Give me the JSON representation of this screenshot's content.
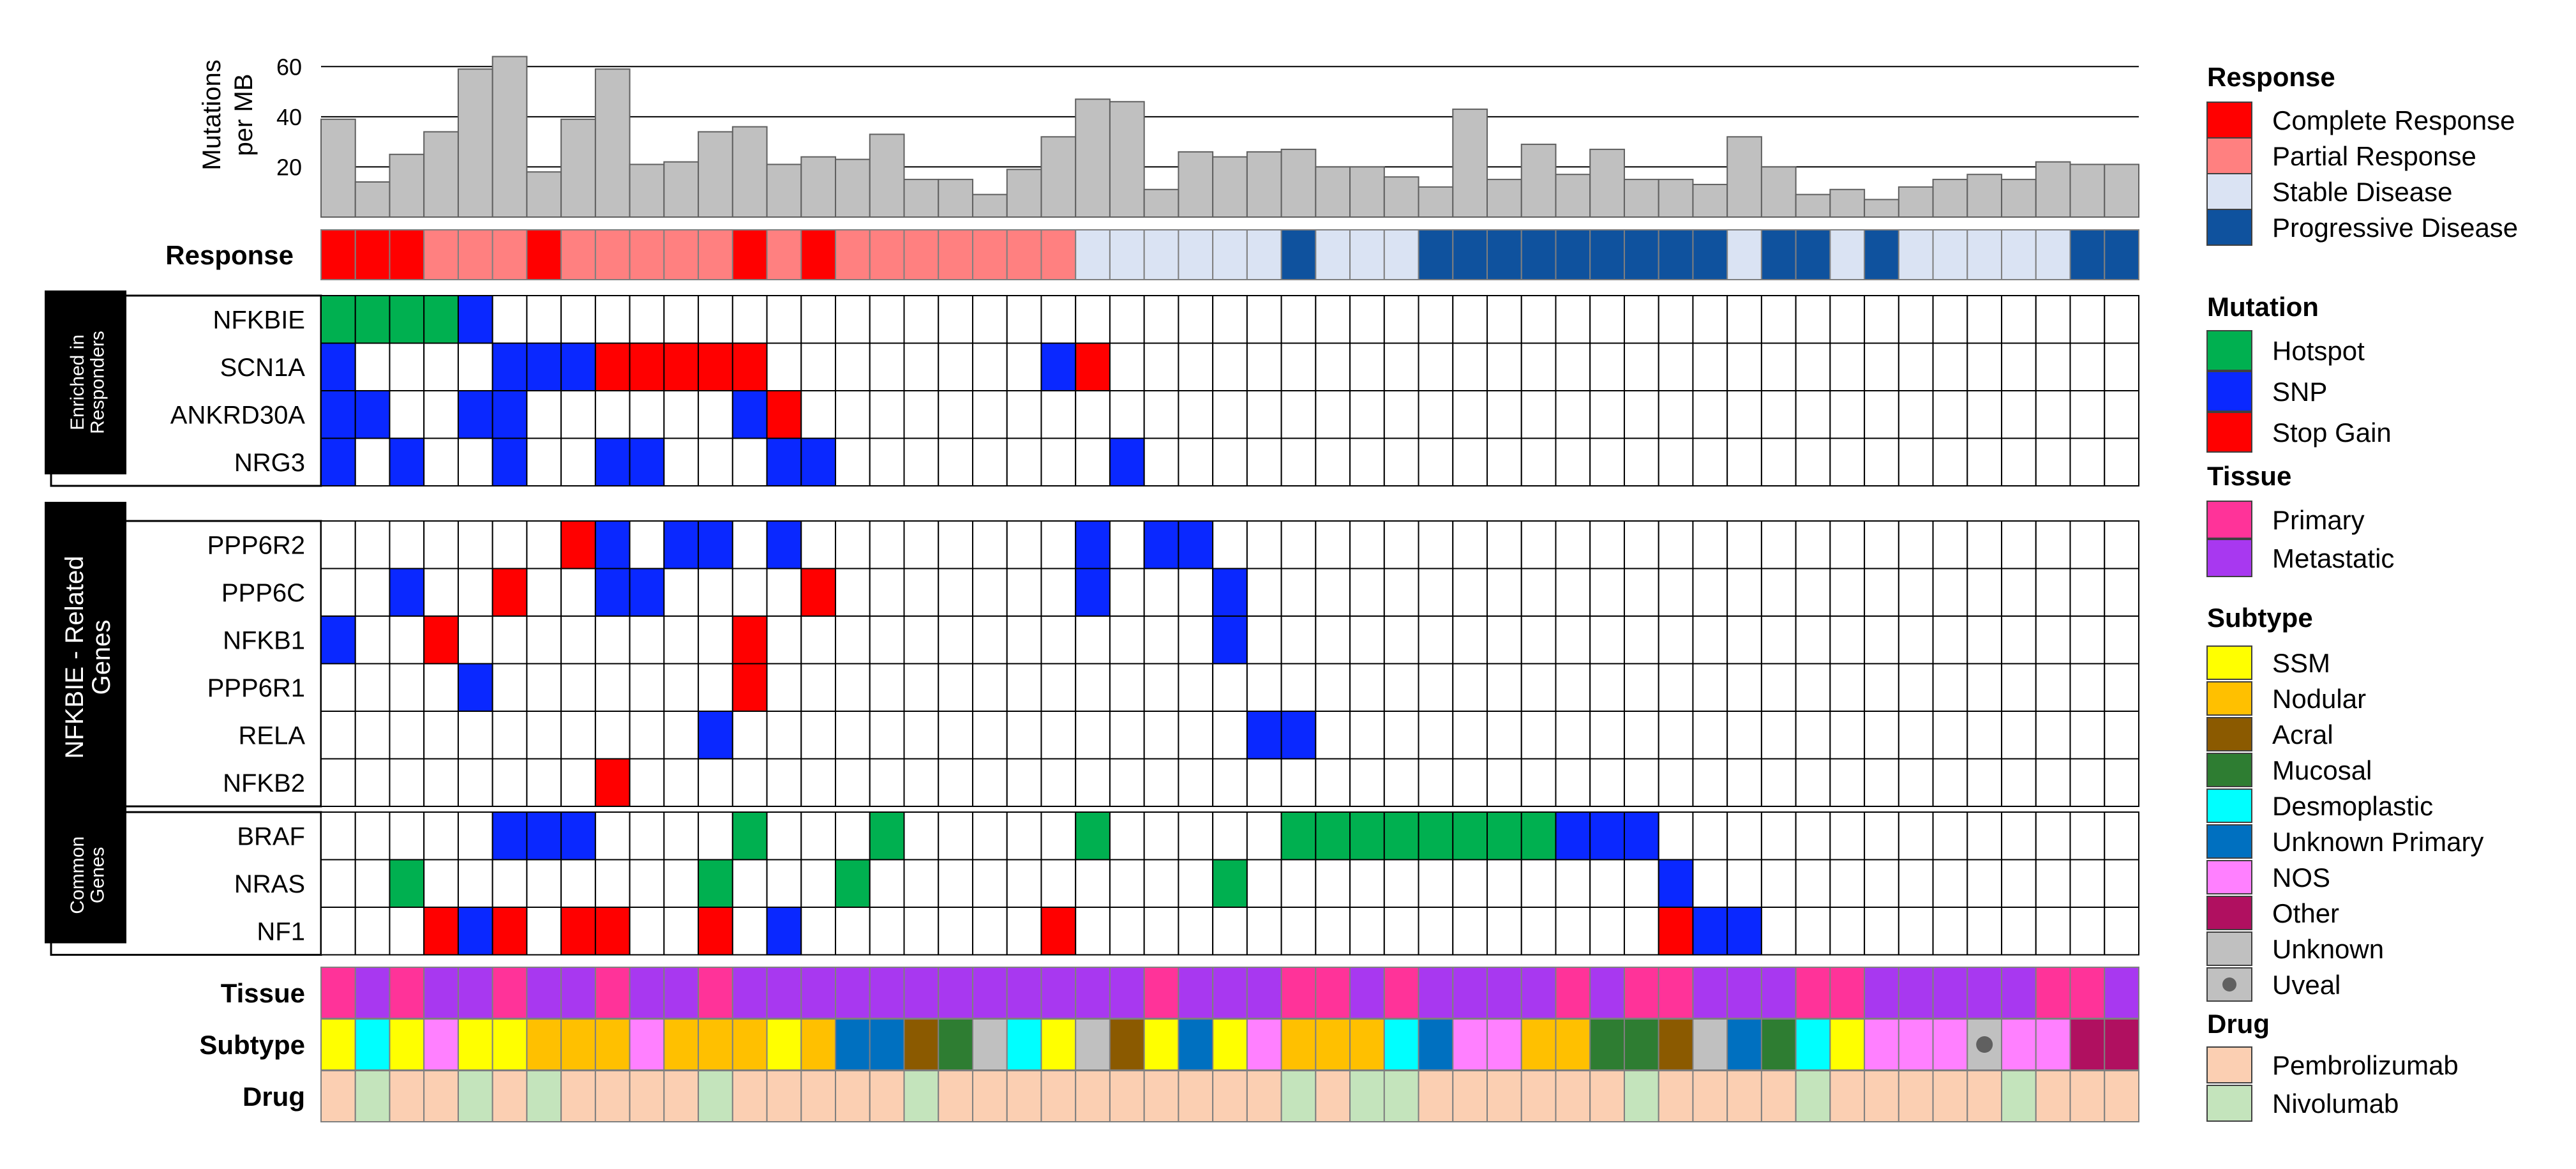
{
  "chart_data": {
    "type": "heatmap",
    "n_patients": 53,
    "tmb": {
      "ylabel_line1": "Mutations",
      "ylabel_line2": "per MB",
      "ticks": [
        "20",
        "40",
        "60"
      ],
      "tick_values": [
        20,
        40,
        60
      ],
      "ylim": [
        0,
        70
      ],
      "grid": true,
      "values": [
        39,
        14,
        25,
        34,
        59,
        64,
        18,
        39,
        59,
        21,
        22,
        34,
        36,
        21,
        24,
        23,
        33,
        15,
        15,
        9,
        19,
        32,
        47,
        46,
        11,
        26,
        24,
        26,
        27,
        20,
        20,
        16,
        12,
        43,
        15,
        29,
        17,
        27,
        15,
        15,
        13,
        32,
        20,
        9,
        11,
        7,
        12,
        15,
        17,
        15,
        22,
        21,
        21
      ]
    },
    "response": {
      "label": "Response",
      "values": [
        "CR",
        "CR",
        "CR",
        "PR",
        "PR",
        "PR",
        "CR",
        "PR",
        "PR",
        "PR",
        "PR",
        "PR",
        "CR",
        "PR",
        "CR",
        "PR",
        "PR",
        "PR",
        "PR",
        "PR",
        "PR",
        "PR",
        "SD",
        "SD",
        "SD",
        "SD",
        "SD",
        "SD",
        "PD",
        "SD",
        "SD",
        "SD",
        "PD",
        "PD",
        "PD",
        "PD",
        "PD",
        "PD",
        "PD",
        "PD",
        "PD",
        "SD",
        "PD",
        "PD",
        "SD",
        "PD",
        "SD",
        "SD",
        "SD",
        "SD",
        "SD",
        "PD",
        "PD"
      ]
    },
    "gene_groups": [
      {
        "label_line1": "Enriched in",
        "label_line2": "Responders",
        "genes": [
          {
            "name": "NFKBIE",
            "mutations": {
              "0": "H",
              "1": "H",
              "2": "H",
              "3": "H",
              "4": "S"
            }
          },
          {
            "name": "SCN1A",
            "mutations": {
              "0": "S",
              "5": "S",
              "6": "S",
              "7": "S",
              "8": "G",
              "9": "G",
              "10": "G",
              "11": "G",
              "12": "G",
              "21": "S",
              "22": "G"
            }
          },
          {
            "name": "ANKRD30A",
            "mutations": {
              "0": "S",
              "1": "S",
              "4": "S",
              "5": "S",
              "12": "S",
              "13": "G"
            }
          },
          {
            "name": "NRG3",
            "mutations": {
              "0": "S",
              "2": "S",
              "5": "S",
              "8": "S",
              "9": "S",
              "13": "S",
              "14": "S",
              "23": "S"
            }
          }
        ]
      },
      {
        "label_line1": "NFKBIE - Related",
        "label_line2": "Genes",
        "genes": [
          {
            "name": "PPP6R2",
            "mutations": {
              "7": "G",
              "8": "S",
              "10": "S",
              "11": "S",
              "13": "S",
              "22": "S",
              "24": "S",
              "25": "S"
            }
          },
          {
            "name": "PPP6C",
            "mutations": {
              "2": "S",
              "5": "G",
              "8": "S",
              "9": "S",
              "14": "G",
              "22": "S",
              "26": "S"
            }
          },
          {
            "name": "NFKB1",
            "mutations": {
              "0": "S",
              "3": "G",
              "12": "G",
              "26": "S"
            }
          },
          {
            "name": "PPP6R1",
            "mutations": {
              "4": "S",
              "12": "G"
            }
          },
          {
            "name": "RELA",
            "mutations": {
              "11": "S",
              "27": "S",
              "28": "S"
            }
          },
          {
            "name": "NFKB2",
            "mutations": {
              "8": "G"
            }
          }
        ]
      },
      {
        "label_line1": "Common",
        "label_line2": "Genes",
        "genes": [
          {
            "name": "BRAF",
            "mutations": {
              "5": "S",
              "6": "S",
              "7": "S",
              "12": "H",
              "16": "H",
              "22": "H",
              "28": "H",
              "29": "H",
              "30": "H",
              "31": "H",
              "32": "H",
              "33": "H",
              "34": "H",
              "35": "H",
              "36": "S",
              "37": "S",
              "38": "S"
            }
          },
          {
            "name": "NRAS",
            "mutations": {
              "2": "H",
              "11": "H",
              "15": "H",
              "26": "H",
              "39": "S"
            }
          },
          {
            "name": "NF1",
            "mutations": {
              "3": "G",
              "4": "S",
              "5": "G",
              "7": "G",
              "8": "G",
              "11": "G",
              "13": "S",
              "21": "G",
              "39": "G",
              "40": "S",
              "41": "S"
            }
          }
        ]
      }
    ],
    "tissue": {
      "label": "Tissue",
      "values": [
        "P",
        "M",
        "P",
        "M",
        "M",
        "P",
        "M",
        "M",
        "P",
        "M",
        "M",
        "P",
        "M",
        "M",
        "M",
        "M",
        "M",
        "M",
        "M",
        "M",
        "M",
        "M",
        "M",
        "M",
        "P",
        "M",
        "M",
        "M",
        "P",
        "P",
        "M",
        "P",
        "M",
        "M",
        "M",
        "M",
        "P",
        "M",
        "P",
        "P",
        "M",
        "M",
        "M",
        "P",
        "P",
        "M",
        "M",
        "M",
        "M",
        "M",
        "P",
        "P",
        "M"
      ]
    },
    "subtype": {
      "label": "Subtype",
      "values": [
        "SSM",
        "DES",
        "SSM",
        "NOS",
        "SSM",
        "SSM",
        "NOD",
        "NOD",
        "NOD",
        "NOS",
        "NOD",
        "NOD",
        "NOD",
        "SSM",
        "NOD",
        "UP",
        "UP",
        "ACR",
        "MUC",
        "UNK",
        "DES",
        "SSM",
        "UNK",
        "ACR",
        "SSM",
        "UP",
        "SSM",
        "NOS",
        "NOD",
        "NOD",
        "NOD",
        "DES",
        "UP",
        "NOS",
        "NOS",
        "NOD",
        "NOD",
        "MUC",
        "MUC",
        "ACR",
        "UNK",
        "UP",
        "MUC",
        "DES",
        "SSM",
        "NOS",
        "NOS",
        "NOS",
        "UV",
        "NOS",
        "NOS",
        "OTH",
        "OTH"
      ]
    },
    "drug": {
      "label": "Drug",
      "values": [
        "Pem",
        "Niv",
        "Pem",
        "Pem",
        "Niv",
        "Pem",
        "Niv",
        "Pem",
        "Pem",
        "Pem",
        "Pem",
        "Niv",
        "Pem",
        "Pem",
        "Pem",
        "Pem",
        "Pem",
        "Niv",
        "Pem",
        "Pem",
        "Pem",
        "Pem",
        "Pem",
        "Pem",
        "Pem",
        "Pem",
        "Pem",
        "Pem",
        "Niv",
        "Pem",
        "Niv",
        "Niv",
        "Pem",
        "Pem",
        "Pem",
        "Pem",
        "Pem",
        "Pem",
        "Niv",
        "Pem",
        "Pem",
        "Pem",
        "Pem",
        "Niv",
        "Pem",
        "Pem",
        "Pem",
        "Pem",
        "Pem",
        "Niv",
        "Pem",
        "Pem",
        "Pem"
      ]
    }
  },
  "legend": {
    "response": {
      "title": "Response",
      "items": [
        {
          "key": "CR",
          "label": "Complete Response",
          "color": "#ff0000"
        },
        {
          "key": "PR",
          "label": "Partial Response",
          "color": "#ff8080"
        },
        {
          "key": "SD",
          "label": "Stable Disease",
          "color": "#dae3f3"
        },
        {
          "key": "PD",
          "label": "Progressive Disease",
          "color": "#0f529e"
        }
      ]
    },
    "mutation": {
      "title": "Mutation",
      "items": [
        {
          "key": "H",
          "label": "Hotspot",
          "color": "#00b050"
        },
        {
          "key": "S",
          "label": "SNP",
          "color": "#0a28ff"
        },
        {
          "key": "G",
          "label": "Stop Gain",
          "color": "#ff0000"
        }
      ]
    },
    "tissue": {
      "title": "Tissue",
      "items": [
        {
          "key": "P",
          "label": "Primary",
          "color": "#ff3399"
        },
        {
          "key": "M",
          "label": "Metastatic",
          "color": "#a838f0"
        }
      ]
    },
    "subtype": {
      "title": "Subtype",
      "items": [
        {
          "key": "SSM",
          "label": "SSM",
          "color": "#ffff00"
        },
        {
          "key": "NOD",
          "label": "Nodular",
          "color": "#ffc000"
        },
        {
          "key": "ACR",
          "label": "Acral",
          "color": "#8b5a00"
        },
        {
          "key": "MUC",
          "label": "Mucosal",
          "color": "#2e7d32"
        },
        {
          "key": "DES",
          "label": "Desmoplastic",
          "color": "#00ffff"
        },
        {
          "key": "UP",
          "label": "Unknown Primary",
          "color": "#0070c0"
        },
        {
          "key": "NOS",
          "label": "NOS",
          "color": "#ff80ff"
        },
        {
          "key": "OTH",
          "label": "Other",
          "color": "#b01060"
        },
        {
          "key": "UNK",
          "label": "Unknown",
          "color": "#c0c0c0"
        },
        {
          "key": "UV",
          "label": "Uveal",
          "color": "#c0c0c0"
        }
      ]
    },
    "drug": {
      "title": "Drug",
      "items": [
        {
          "key": "Pem",
          "label": "Pembrolizumab",
          "color": "#fbcfb2"
        },
        {
          "key": "Niv",
          "label": "Nivolumab",
          "color": "#c4e4bc"
        }
      ]
    }
  }
}
